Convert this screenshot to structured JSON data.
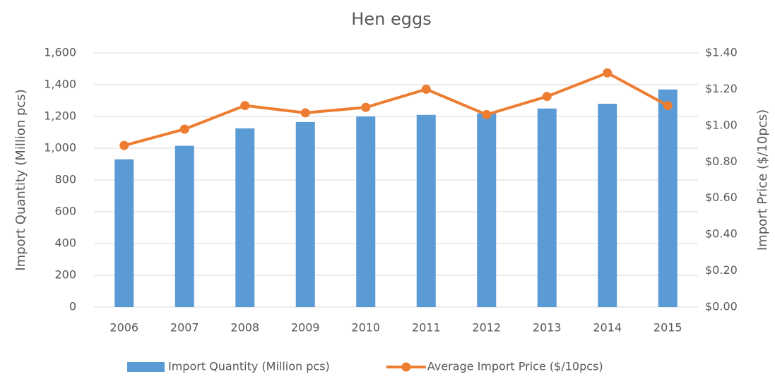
{
  "chart_data": {
    "type": "bar-line",
    "title": "Hen eggs",
    "categories": [
      "2006",
      "2007",
      "2008",
      "2009",
      "2010",
      "2011",
      "2012",
      "2013",
      "2014",
      "2015"
    ],
    "y_label": "Import Quantity (Million pcs)",
    "y2_label": "Import Price ($/10pcs)",
    "series": [
      {
        "name": "Import Quantity (Million pcs)",
        "type": "bar",
        "color": "#5b9bd5",
        "values": [
          930,
          1015,
          1125,
          1165,
          1200,
          1210,
          1220,
          1250,
          1280,
          1370
        ]
      },
      {
        "name": "Average Import Price ($/10pcs)",
        "type": "line",
        "color": "#ed7d31",
        "axis": "y2",
        "values": [
          0.89,
          0.98,
          1.11,
          1.07,
          1.1,
          1.2,
          1.06,
          1.16,
          1.29,
          1.11
        ]
      }
    ],
    "ylim": [
      0,
      1600
    ],
    "yticks": [
      0,
      200,
      400,
      600,
      800,
      {
        "value": 1000,
        "label": "1,000"
      },
      {
        "value": 1200,
        "label": "1,200"
      },
      {
        "value": 1400,
        "label": "1,400"
      },
      {
        "value": 1600,
        "label": "1,600"
      }
    ],
    "y2lim": [
      0,
      1.4
    ],
    "y2ticks": [
      {
        "value": 0,
        "label": "$0.00"
      },
      {
        "value": 0.2,
        "label": "$0.20"
      },
      {
        "value": 0.4,
        "label": "$0.40"
      },
      {
        "value": 0.6,
        "label": "$0.60"
      },
      {
        "value": 0.8,
        "label": "$0.80"
      },
      {
        "value": 1.0,
        "label": "$1.00"
      },
      {
        "value": 1.2,
        "label": "$1.20"
      },
      {
        "value": 1.4,
        "label": "$1.40"
      }
    ],
    "grid": true,
    "legend": "bottom"
  }
}
